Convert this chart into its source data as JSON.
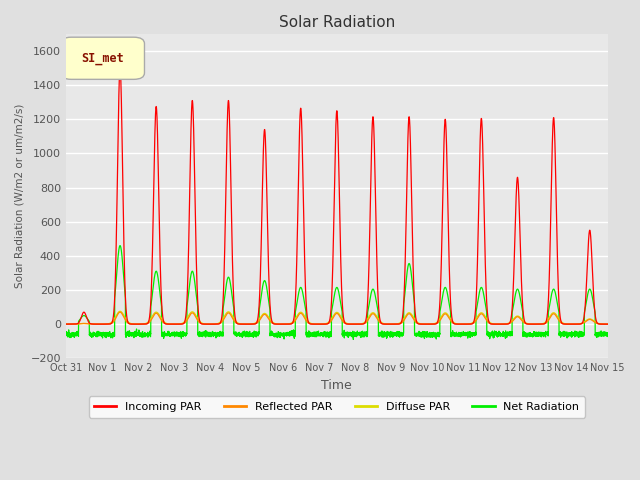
{
  "title": "Solar Radiation",
  "ylabel": "Solar Radiation (W/m2 or um/m2/s)",
  "xlabel": "Time",
  "ylim": [
    -200,
    1700
  ],
  "yticks": [
    -200,
    0,
    200,
    400,
    600,
    800,
    1000,
    1200,
    1400,
    1600
  ],
  "background_color": "#e0e0e0",
  "plot_bg_color": "#e8e8e8",
  "grid_color": "white",
  "title_color": "#333333",
  "label_color": "#555555",
  "station_label": "SI_met",
  "x_tick_labels": [
    "Oct 31",
    "Nov 1",
    "Nov 2",
    "Nov 3",
    "Nov 4",
    "Nov 5",
    "Nov 6",
    "Nov 7",
    "Nov 8",
    "Nov 9",
    "Nov 10",
    "Nov 11",
    "Nov 12",
    "Nov 13",
    "Nov 14",
    "Nov 15"
  ],
  "colors": {
    "incoming": "#ff0000",
    "reflected": "#ff8800",
    "diffuse": "#dddd00",
    "net": "#00ee00"
  },
  "legend": [
    "Incoming PAR",
    "Reflected PAR",
    "Diffuse PAR",
    "Net Radiation"
  ],
  "n_days": 15,
  "day_samples": 288,
  "peak_incoming": [
    70,
    1500,
    1275,
    1310,
    1310,
    1140,
    1265,
    1250,
    1215,
    1215,
    1200,
    1205,
    860,
    1210,
    550
  ],
  "peak_net": [
    50,
    460,
    310,
    310,
    275,
    255,
    215,
    215,
    205,
    355,
    215,
    215,
    205,
    205,
    205
  ],
  "figsize": [
    6.4,
    4.8
  ],
  "dpi": 100
}
